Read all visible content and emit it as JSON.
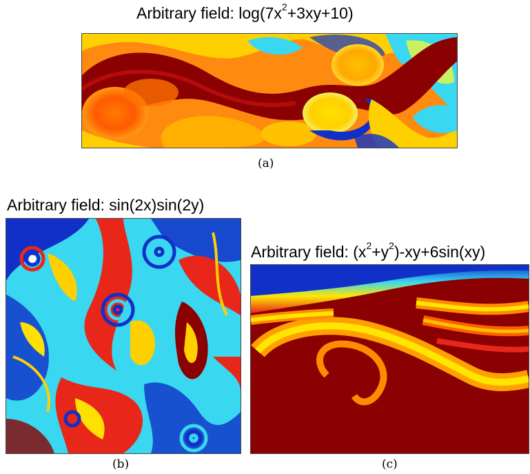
{
  "panel_a": {
    "title_prefix": "Arbitrary field: log(7x",
    "title_sup1": "2",
    "title_rest": "+3xy+10)",
    "caption": "(a)"
  },
  "panel_b": {
    "title": "Arbitrary field: sin(2x)sin(2y)",
    "caption": "(b)"
  },
  "panel_c": {
    "title_prefix": "Arbitrary field: (x",
    "title_sup1": "2",
    "title_mid": "+y",
    "title_sup2": "2",
    "title_rest": ")-xy+6sin(xy)",
    "caption": "(c)"
  },
  "colors": {
    "dark_red": "#8b0000",
    "red": "#e8261a",
    "orange": "#ff8c00",
    "yellow": "#ffe600",
    "cyan": "#39d8f0",
    "blue": "#1030c8",
    "dark_blue": "#00008b"
  }
}
